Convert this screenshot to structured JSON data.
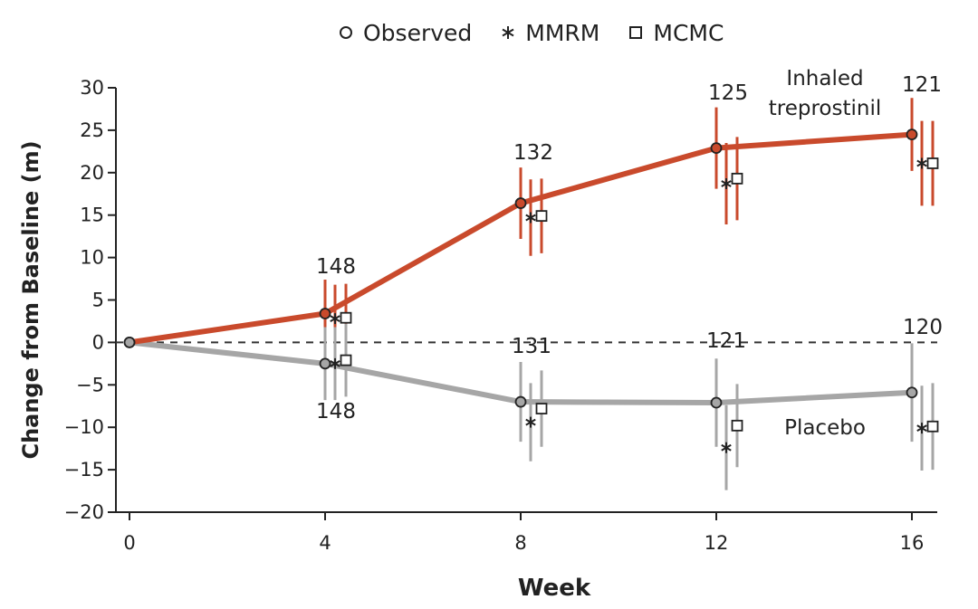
{
  "chart_data": {
    "type": "line",
    "title": "",
    "xlabel": "Week",
    "ylabel": "Change from Baseline (m)",
    "xlim": [
      0,
      16
    ],
    "ylim": [
      -20,
      30
    ],
    "x_ticks": [
      0,
      4,
      8,
      12,
      16
    ],
    "y_ticks": [
      30,
      25,
      20,
      15,
      10,
      5,
      0,
      -5,
      -10,
      -15,
      -20
    ],
    "y_tick_labels": [
      "30",
      "25",
      "20",
      "15",
      "10",
      "5",
      "0",
      "−5",
      "−10",
      "−15",
      "−20"
    ],
    "reference_line": 0,
    "legend": {
      "position": "top-center",
      "entries": [
        {
          "marker": "circle",
          "label": "Observed"
        },
        {
          "marker": "asterisk",
          "label": "MMRM"
        },
        {
          "marker": "square",
          "label": "MCMC"
        }
      ]
    },
    "series": [
      {
        "name": "Inhaled treprostinil",
        "label_lines": [
          "Inhaled",
          "treprostinil"
        ],
        "color": "#c94a2c",
        "observed": [
          {
            "x": 0,
            "y": 0
          },
          {
            "x": 4,
            "y": 3.4,
            "lo": -0.6,
            "hi": 7.4
          },
          {
            "x": 8,
            "y": 16.4,
            "lo": 12.2,
            "hi": 20.6
          },
          {
            "x": 12,
            "y": 22.9,
            "lo": 18.1,
            "hi": 27.7
          },
          {
            "x": 16,
            "y": 24.5,
            "lo": 20.2,
            "hi": 28.8
          }
        ],
        "mmrm": [
          {
            "x": 4,
            "y": 2.8,
            "lo": -1.2,
            "hi": 6.8
          },
          {
            "x": 8,
            "y": 14.7,
            "lo": 10.2,
            "hi": 19.2
          },
          {
            "x": 12,
            "y": 18.7,
            "lo": 13.9,
            "hi": 23.5
          },
          {
            "x": 16,
            "y": 21.1,
            "lo": 16.1,
            "hi": 26.1
          }
        ],
        "mcmc": [
          {
            "x": 4,
            "y": 2.9,
            "lo": -1.1,
            "hi": 6.9
          },
          {
            "x": 8,
            "y": 14.9,
            "lo": 10.5,
            "hi": 19.3
          },
          {
            "x": 12,
            "y": 19.3,
            "lo": 14.4,
            "hi": 24.2
          },
          {
            "x": 16,
            "y": 21.1,
            "lo": 16.1,
            "hi": 26.1
          }
        ],
        "n_labels": [
          {
            "x": 4,
            "text": "148"
          },
          {
            "x": 8,
            "text": "132"
          },
          {
            "x": 12,
            "text": "125"
          },
          {
            "x": 16,
            "text": "121"
          }
        ]
      },
      {
        "name": "Placebo",
        "label_lines": [
          "Placebo"
        ],
        "color": "#a6a6a6",
        "observed": [
          {
            "x": 0,
            "y": 0
          },
          {
            "x": 4,
            "y": -2.5,
            "lo": -6.8,
            "hi": 1.8
          },
          {
            "x": 8,
            "y": -7.0,
            "lo": -11.7,
            "hi": -2.3
          },
          {
            "x": 12,
            "y": -7.1,
            "lo": -12.3,
            "hi": -1.9
          },
          {
            "x": 16,
            "y": -5.9,
            "lo": -11.7,
            "hi": -0.1
          }
        ],
        "mmrm": [
          {
            "x": 4,
            "y": -2.5,
            "lo": -6.8,
            "hi": 1.8
          },
          {
            "x": 8,
            "y": -9.4,
            "lo": -14.0,
            "hi": -4.8
          },
          {
            "x": 12,
            "y": -12.4,
            "lo": -17.4,
            "hi": -7.4
          },
          {
            "x": 16,
            "y": -10.1,
            "lo": -15.1,
            "hi": -5.1
          }
        ],
        "mcmc": [
          {
            "x": 4,
            "y": -2.1,
            "lo": -6.4,
            "hi": 2.2
          },
          {
            "x": 8,
            "y": -7.8,
            "lo": -12.3,
            "hi": -3.3
          },
          {
            "x": 12,
            "y": -9.8,
            "lo": -14.7,
            "hi": -4.9
          },
          {
            "x": 16,
            "y": -9.9,
            "lo": -15.0,
            "hi": -4.8
          }
        ],
        "n_labels": [
          {
            "x": 4,
            "text": "148"
          },
          {
            "x": 8,
            "text": "131"
          },
          {
            "x": 12,
            "text": "121"
          },
          {
            "x": 16,
            "text": "120"
          }
        ]
      }
    ]
  }
}
